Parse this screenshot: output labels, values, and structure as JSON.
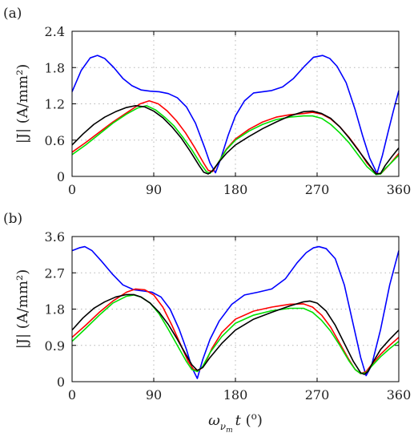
{
  "chart_data": [
    {
      "panel_label": "(a)",
      "type": "line",
      "ylabel": "|J| (A/mm²)",
      "xlim": [
        0,
        360
      ],
      "ylim": [
        0,
        2.4
      ],
      "xticks": [
        0,
        90,
        180,
        270,
        360
      ],
      "yticks": [
        "0",
        "0.6",
        "1.2",
        "1.8",
        "2.4"
      ],
      "grid": true,
      "series": [
        {
          "color": "#0000ff",
          "x": [
            0,
            10,
            20,
            28,
            36,
            46,
            56,
            66,
            76,
            86,
            96,
            106,
            116,
            126,
            136,
            146,
            152,
            158,
            164,
            172,
            180,
            190,
            200,
            210,
            220,
            232,
            244,
            256,
            266,
            276,
            284,
            292,
            302,
            312,
            320,
            328,
            336,
            342,
            348,
            354,
            360
          ],
          "y": [
            1.4,
            1.75,
            1.96,
            2.0,
            1.95,
            1.8,
            1.62,
            1.5,
            1.43,
            1.41,
            1.4,
            1.37,
            1.3,
            1.15,
            0.88,
            0.48,
            0.22,
            0.06,
            0.3,
            0.68,
            1.0,
            1.25,
            1.38,
            1.4,
            1.42,
            1.48,
            1.62,
            1.82,
            1.97,
            2.0,
            1.95,
            1.82,
            1.55,
            1.1,
            0.68,
            0.3,
            0.05,
            0.35,
            0.72,
            1.08,
            1.42
          ]
        },
        {
          "color": "#ff0000",
          "x": [
            0,
            15,
            30,
            45,
            60,
            75,
            85,
            95,
            105,
            115,
            125,
            135,
            145,
            150,
            155,
            160,
            170,
            180,
            195,
            210,
            225,
            240,
            255,
            265,
            275,
            285,
            295,
            305,
            315,
            325,
            335,
            340,
            345,
            350,
            360
          ],
          "y": [
            0.4,
            0.56,
            0.73,
            0.9,
            1.05,
            1.2,
            1.25,
            1.2,
            1.08,
            0.92,
            0.72,
            0.48,
            0.22,
            0.1,
            0.08,
            0.2,
            0.45,
            0.62,
            0.78,
            0.9,
            0.98,
            1.02,
            1.04,
            1.06,
            1.03,
            0.95,
            0.82,
            0.65,
            0.45,
            0.22,
            0.05,
            0.04,
            0.12,
            0.2,
            0.38
          ]
        },
        {
          "color": "#00e000",
          "x": [
            0,
            15,
            30,
            45,
            60,
            72,
            82,
            92,
            102,
            112,
            122,
            132,
            142,
            148,
            152,
            156,
            160,
            170,
            180,
            195,
            210,
            225,
            240,
            255,
            265,
            275,
            285,
            295,
            305,
            315,
            325,
            335,
            340,
            345,
            350,
            360
          ],
          "y": [
            0.36,
            0.52,
            0.7,
            0.88,
            1.03,
            1.13,
            1.17,
            1.1,
            0.98,
            0.84,
            0.65,
            0.44,
            0.2,
            0.08,
            0.05,
            0.12,
            0.2,
            0.44,
            0.6,
            0.75,
            0.86,
            0.94,
            0.98,
            1.0,
            1.0,
            0.96,
            0.86,
            0.72,
            0.56,
            0.36,
            0.16,
            0.03,
            0.04,
            0.13,
            0.2,
            0.35
          ]
        },
        {
          "color": "#000000",
          "x": [
            0,
            12,
            24,
            36,
            48,
            60,
            70,
            80,
            90,
            100,
            110,
            120,
            130,
            140,
            145,
            150,
            155,
            162,
            170,
            180,
            195,
            210,
            225,
            240,
            255,
            265,
            275,
            285,
            295,
            305,
            315,
            325,
            335,
            340,
            345,
            352,
            360
          ],
          "y": [
            0.52,
            0.7,
            0.86,
            0.98,
            1.07,
            1.14,
            1.17,
            1.15,
            1.08,
            0.97,
            0.82,
            0.64,
            0.42,
            0.18,
            0.07,
            0.04,
            0.1,
            0.24,
            0.38,
            0.52,
            0.66,
            0.79,
            0.9,
            1.0,
            1.07,
            1.08,
            1.04,
            0.96,
            0.82,
            0.64,
            0.44,
            0.24,
            0.04,
            0.05,
            0.18,
            0.32,
            0.47
          ]
        }
      ]
    },
    {
      "panel_label": "(b)",
      "type": "line",
      "xlabel": "ω_{ν_m} t (°)",
      "ylabel": "|J| (A/mm²)",
      "xlim": [
        0,
        360
      ],
      "ylim": [
        0,
        3.6
      ],
      "xticks": [
        0,
        90,
        180,
        270,
        360
      ],
      "yticks": [
        "0",
        "0.9",
        "1.8",
        "2.7",
        "3.6"
      ],
      "grid": true,
      "series": [
        {
          "color": "#0000ff",
          "x": [
            0,
            8,
            14,
            22,
            32,
            44,
            56,
            68,
            78,
            88,
            98,
            108,
            118,
            126,
            132,
            138,
            144,
            152,
            162,
            176,
            190,
            205,
            220,
            235,
            248,
            258,
            266,
            272,
            280,
            290,
            300,
            310,
            318,
            324,
            330,
            340,
            350,
            360
          ],
          "y": [
            3.25,
            3.32,
            3.35,
            3.25,
            3.0,
            2.68,
            2.4,
            2.28,
            2.25,
            2.22,
            2.1,
            1.8,
            1.3,
            0.8,
            0.35,
            0.08,
            0.55,
            1.05,
            1.5,
            1.92,
            2.15,
            2.22,
            2.3,
            2.55,
            2.95,
            3.2,
            3.32,
            3.35,
            3.3,
            3.05,
            2.4,
            1.4,
            0.6,
            0.15,
            0.4,
            1.3,
            2.4,
            3.25
          ]
        },
        {
          "color": "#ff0000",
          "x": [
            0,
            15,
            30,
            45,
            60,
            70,
            80,
            90,
            100,
            110,
            120,
            128,
            134,
            140,
            146,
            154,
            165,
            180,
            200,
            220,
            240,
            255,
            265,
            275,
            285,
            295,
            305,
            312,
            318,
            324,
            330,
            340,
            350,
            360
          ],
          "y": [
            1.1,
            1.4,
            1.72,
            2.0,
            2.22,
            2.3,
            2.28,
            2.15,
            1.85,
            1.4,
            0.9,
            0.5,
            0.3,
            0.28,
            0.42,
            0.82,
            1.22,
            1.55,
            1.75,
            1.85,
            1.92,
            1.93,
            1.85,
            1.65,
            1.35,
            0.95,
            0.55,
            0.3,
            0.2,
            0.25,
            0.42,
            0.68,
            0.9,
            1.1
          ]
        },
        {
          "color": "#00e000",
          "x": [
            0,
            15,
            30,
            45,
            60,
            68,
            76,
            86,
            96,
            106,
            116,
            126,
            132,
            138,
            144,
            152,
            165,
            180,
            200,
            220,
            240,
            255,
            265,
            275,
            285,
            295,
            305,
            312,
            318,
            324,
            330,
            340,
            350,
            360
          ],
          "y": [
            1.0,
            1.32,
            1.65,
            1.95,
            2.12,
            2.15,
            2.1,
            1.95,
            1.68,
            1.3,
            0.9,
            0.5,
            0.3,
            0.25,
            0.38,
            0.72,
            1.12,
            1.45,
            1.65,
            1.76,
            1.82,
            1.82,
            1.72,
            1.52,
            1.25,
            0.9,
            0.52,
            0.3,
            0.2,
            0.22,
            0.38,
            0.62,
            0.82,
            1.0
          ]
        },
        {
          "color": "#000000",
          "x": [
            0,
            12,
            24,
            36,
            48,
            60,
            68,
            76,
            86,
            96,
            106,
            116,
            126,
            132,
            138,
            144,
            152,
            165,
            180,
            200,
            220,
            240,
            255,
            262,
            270,
            280,
            290,
            300,
            310,
            318,
            322,
            326,
            332,
            340,
            350,
            360
          ],
          "y": [
            1.28,
            1.58,
            1.82,
            1.98,
            2.1,
            2.16,
            2.16,
            2.1,
            1.95,
            1.72,
            1.42,
            1.05,
            0.65,
            0.42,
            0.28,
            0.35,
            0.6,
            0.95,
            1.28,
            1.55,
            1.72,
            1.88,
            1.98,
            2.0,
            1.95,
            1.75,
            1.4,
            0.95,
            0.5,
            0.22,
            0.18,
            0.25,
            0.5,
            0.8,
            1.05,
            1.28
          ]
        }
      ]
    }
  ]
}
